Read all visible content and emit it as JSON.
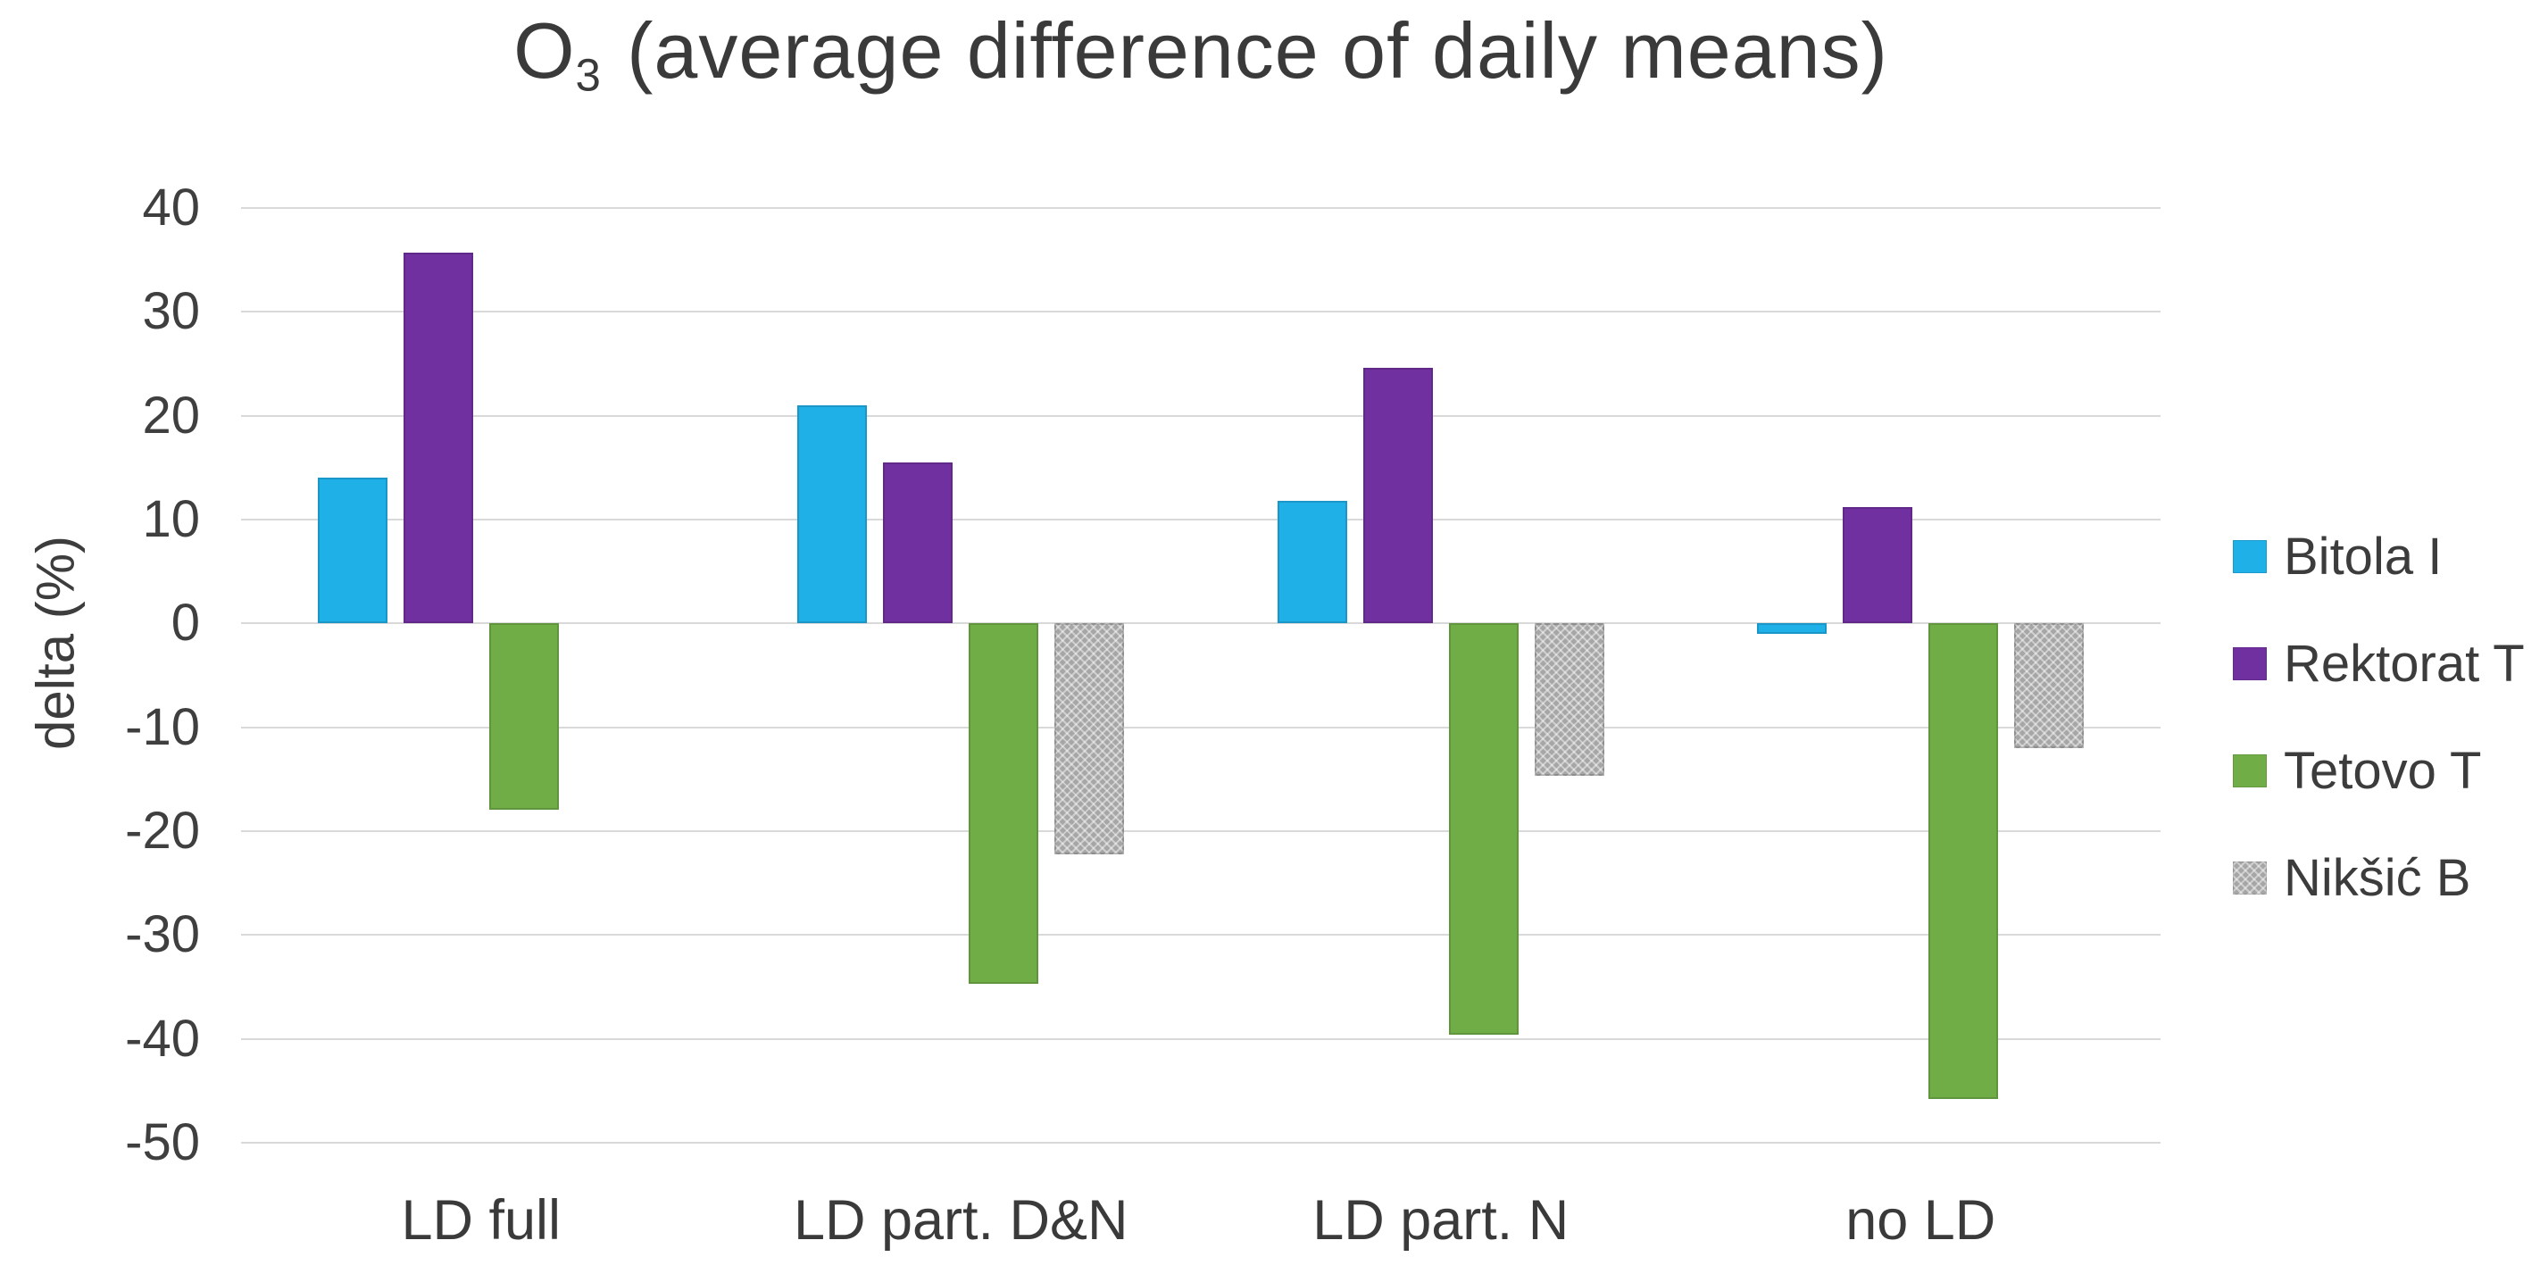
{
  "title": {
    "prefix": "O",
    "subscript": "3",
    "suffix": "(average difference of daily means)"
  },
  "chart_data": {
    "type": "bar",
    "title": "O3 (average difference of daily means)",
    "categories": [
      "LD full",
      "LD part. D&N",
      "LD part. N",
      "no LD"
    ],
    "series": [
      {
        "name": "Bitola I",
        "color": "#1fb0e8",
        "pattern": false,
        "values": [
          14.0,
          21.0,
          11.8,
          -1.0
        ]
      },
      {
        "name": "Rektorat T",
        "color": "#7030a0",
        "pattern": false,
        "values": [
          35.7,
          15.5,
          24.6,
          11.2
        ]
      },
      {
        "name": "Tetovo T",
        "color": "#70ad47",
        "pattern": false,
        "values": [
          -17.9,
          -34.7,
          -39.6,
          -45.8
        ]
      },
      {
        "name": "Nikšić B",
        "color": "#a6a6a6",
        "pattern": true,
        "values": [
          null,
          -22.2,
          -14.7,
          -12.0
        ]
      }
    ],
    "xlabel": "",
    "ylabel": "delta (%)",
    "ylim": [
      -50,
      40
    ],
    "ytick_step": 10,
    "yticks": [
      40,
      30,
      20,
      10,
      0,
      -10,
      -20,
      -30,
      -40,
      -50
    ],
    "grid": true,
    "gridline_color": "#d9d9d9",
    "legend_position": "middle-right",
    "legend": [
      "Bitola I",
      "Rektorat T",
      "Tetovo T",
      "Nikšić B"
    ]
  }
}
